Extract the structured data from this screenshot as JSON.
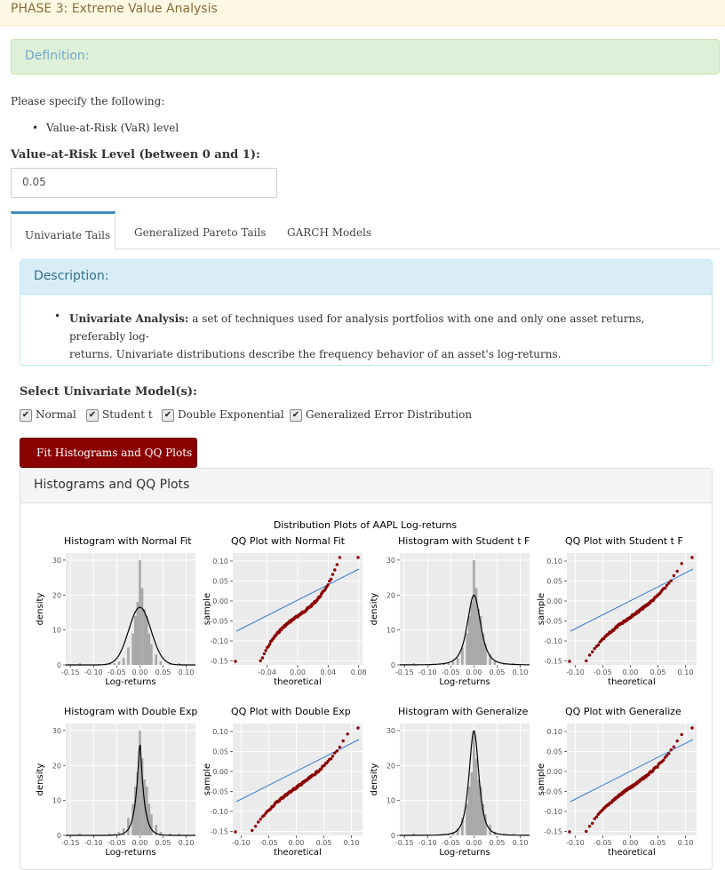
{
  "phase_title": "PHASE 3: Extreme Value Analysis",
  "definition_title": "Definition:",
  "instructions": "Please specify the following:",
  "instruction_items": [
    "Value-at-Risk (VaR) level"
  ],
  "var_label": "Value-at-Risk Level (between 0 and 1):",
  "var_value": "0.05",
  "tabs": [
    {
      "label": "Univariate Tails",
      "active": true
    },
    {
      "label": "Generalized Pareto Tails",
      "active": false
    },
    {
      "label": "GARCH Models",
      "active": false
    }
  ],
  "description": {
    "title": "Description:",
    "term": "Univariate Analysis:",
    "text_line1": "a set of techniques used for analysis portfolios with one and only one asset returns, preferably log-",
    "text_line2": "returns. Univariate distributions describe the frequency behavior of an asset's log-returns."
  },
  "model_select": {
    "label": "Select Univariate Model(s):",
    "options": [
      {
        "label": "Normal",
        "checked": true
      },
      {
        "label": "Student t",
        "checked": true
      },
      {
        "label": "Double Exponential",
        "checked": true
      },
      {
        "label": "Generalized Error Distribution",
        "checked": true
      }
    ]
  },
  "fit_button": "Fit Histograms and QQ Plots",
  "results_title": "Histograms and QQ Plots",
  "colors": {
    "button": "#8b0000",
    "panel_bg": "#ebebeb",
    "points": "#8b0000",
    "qq_line": "#3a7ad0",
    "hist_bar": "#a8a8a8"
  },
  "chart_data": {
    "type": "grid",
    "title": "Distribution Plots of AAPL Log-returns",
    "panels": [
      {
        "type": "histogram",
        "title": "Histogram with Normal Fit",
        "xlabel": "Log-returns",
        "ylabel": "density",
        "xticks": [
          "-0.15",
          "-0.10",
          "-0.05",
          "0.00",
          "0.05",
          "0.10"
        ],
        "yticks": [
          "0",
          "10",
          "20",
          "30"
        ],
        "xlim": [
          -0.16,
          0.12
        ],
        "ylim": [
          0,
          32
        ],
        "fit_peak": 16.5,
        "fit_sd": 0.024
      },
      {
        "type": "qq",
        "title": "QQ Plot with Normal Fit",
        "xlabel": "theoretical",
        "ylabel": "sample",
        "xticks": [
          "-0.04",
          "0.00",
          "0.04",
          "0.08"
        ],
        "yticks": [
          "-0.15",
          "-0.10",
          "-0.05",
          "0.00",
          "0.05",
          "0.10"
        ],
        "xlim": [
          -0.085,
          0.085
        ],
        "ylim": [
          -0.16,
          0.12
        ]
      },
      {
        "type": "histogram",
        "title": "Histogram with Student t F",
        "xlabel": "Log-returns",
        "ylabel": "density",
        "xticks": [
          "-0.15",
          "-0.10",
          "-0.05",
          "0.00",
          "0.05",
          "0.10"
        ],
        "yticks": [
          "0",
          "10",
          "20",
          "30"
        ],
        "xlim": [
          -0.16,
          0.12
        ],
        "ylim": [
          0,
          32
        ],
        "fit_peak": 20,
        "fit_sd": 0.015
      },
      {
        "type": "qq",
        "title": "QQ Plot with Student t F",
        "xlabel": "theoretical",
        "ylabel": "sample",
        "xticks": [
          "-0.10",
          "-0.05",
          "0.00",
          "0.05",
          "0.10"
        ],
        "yticks": [
          "-0.15",
          "-0.10",
          "-0.05",
          "0.00",
          "0.05",
          "0.10"
        ],
        "xlim": [
          -0.115,
          0.12
        ],
        "ylim": [
          -0.16,
          0.12
        ]
      },
      {
        "type": "histogram",
        "title": "Histogram with Double Exp",
        "xlabel": "Log-returns",
        "ylabel": "density",
        "xticks": [
          "-0.15",
          "-0.10",
          "-0.05",
          "0.00",
          "0.05",
          "0.10"
        ],
        "yticks": [
          "0",
          "10",
          "20",
          "30"
        ],
        "xlim": [
          -0.16,
          0.12
        ],
        "ylim": [
          0,
          32
        ],
        "fit_peak": 29,
        "fit_sd": 0.0125
      },
      {
        "type": "qq",
        "title": "QQ Plot with Double Exp",
        "xlabel": "theoretical",
        "ylabel": "sample",
        "xticks": [
          "-0.10",
          "-0.05",
          "0.00",
          "0.05",
          "0.10"
        ],
        "yticks": [
          "-0.15",
          "-0.10",
          "-0.05",
          "0.00",
          "0.05",
          "0.10"
        ],
        "xlim": [
          -0.115,
          0.12
        ],
        "ylim": [
          -0.16,
          0.12
        ]
      },
      {
        "type": "histogram",
        "title": "Histogram with Generalize",
        "xlabel": "Log-returns",
        "ylabel": "density",
        "xticks": [
          "-0.15",
          "-0.10",
          "-0.05",
          "0.00",
          "0.05",
          "0.10"
        ],
        "yticks": [
          "0",
          "10",
          "20",
          "30"
        ],
        "xlim": [
          -0.16,
          0.12
        ],
        "ylim": [
          0,
          32
        ],
        "fit_peak": 30,
        "fit_sd": 0.011
      },
      {
        "type": "qq",
        "title": "QQ Plot with Generalize",
        "xlabel": "theoretical",
        "ylabel": "sample",
        "xticks": [
          "-0.10",
          "-0.05",
          "0.00",
          "0.05",
          "0.10"
        ],
        "yticks": [
          "-0.15",
          "-0.10",
          "-0.05",
          "0.00",
          "0.05",
          "0.10"
        ],
        "xlim": [
          -0.115,
          0.12
        ],
        "ylim": [
          -0.16,
          0.12
        ]
      }
    ],
    "histogram_bins": {
      "centers": [
        -0.13,
        -0.065,
        -0.055,
        -0.045,
        -0.035,
        -0.025,
        -0.015,
        -0.01,
        -0.005,
        0.0,
        0.005,
        0.01,
        0.015,
        0.02,
        0.025,
        0.035,
        0.045,
        0.065,
        0.085
      ],
      "density": [
        0.5,
        0.5,
        0.5,
        1,
        2,
        5,
        9,
        14,
        18,
        30,
        22,
        16,
        14,
        9,
        6,
        3,
        1,
        0.5,
        0.5
      ]
    }
  }
}
